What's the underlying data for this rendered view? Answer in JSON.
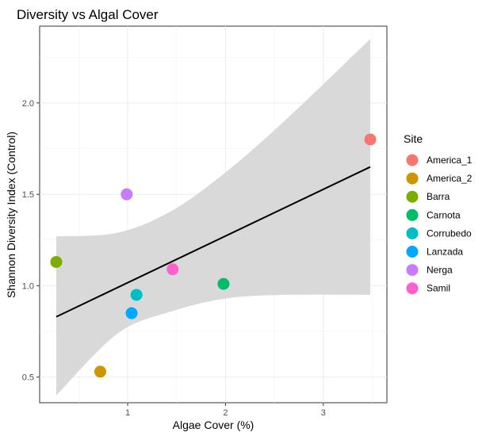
{
  "chart_data": {
    "type": "scatter",
    "title": "Diversity vs Algal Cover",
    "xlabel": "Algae Cover (%)",
    "ylabel": "Shannon Diversity Index (Control)",
    "xlim": [
      0.1,
      3.65
    ],
    "ylim": [
      0.36,
      2.42
    ],
    "x_ticks": [
      1,
      2,
      3
    ],
    "x_tick_labels": [
      "1",
      "2",
      "3"
    ],
    "y_ticks": [
      0.5,
      1.0,
      1.5,
      2.0
    ],
    "y_tick_labels": [
      "0.5",
      "1.0",
      "1.5",
      "2.0"
    ],
    "grid": true,
    "legend": {
      "title": "Site",
      "position": "right"
    },
    "series": [
      {
        "name": "America_1",
        "color": "#F8766D",
        "x": 3.48,
        "y": 1.8
      },
      {
        "name": "America_2",
        "color": "#CD9600",
        "x": 0.72,
        "y": 0.53
      },
      {
        "name": "Barra",
        "color": "#7CAE00",
        "x": 0.27,
        "y": 1.13
      },
      {
        "name": "Carnota",
        "color": "#00BE67",
        "x": 1.98,
        "y": 1.01
      },
      {
        "name": "Corrubedo",
        "color": "#00BFC4",
        "x": 1.09,
        "y": 0.95
      },
      {
        "name": "Lanzada",
        "color": "#00A9FF",
        "x": 1.04,
        "y": 0.85
      },
      {
        "name": "Nerga",
        "color": "#C77CFF",
        "x": 0.99,
        "y": 1.5
      },
      {
        "name": "Samil",
        "color": "#FF61CC",
        "x": 1.46,
        "y": 1.09
      }
    ],
    "trend_line": {
      "type": "linear",
      "color": "#000000",
      "x": [
        0.27,
        3.48
      ],
      "y": [
        0.83,
        1.65
      ]
    },
    "confidence_band": {
      "color": "#d9d9d9",
      "x": [
        0.27,
        0.9,
        1.45,
        2.0,
        2.6,
        3.48
      ],
      "lower": [
        0.4,
        0.74,
        0.86,
        0.93,
        0.95,
        0.95
      ],
      "upper": [
        1.27,
        1.29,
        1.41,
        1.62,
        1.9,
        2.35
      ]
    }
  }
}
